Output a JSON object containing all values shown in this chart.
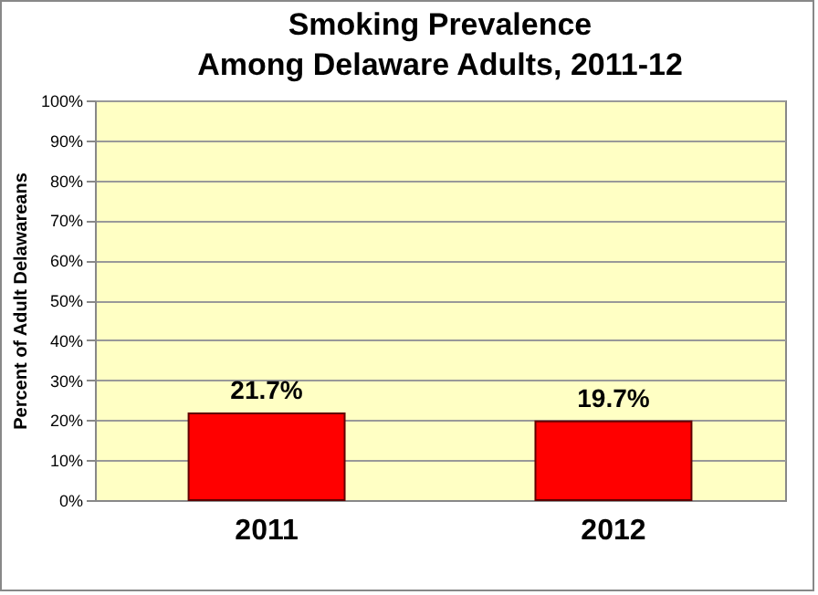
{
  "chart_data": {
    "type": "bar",
    "title": [
      "Smoking Prevalence",
      "Among Delaware Adults, 2011-12"
    ],
    "ylabel": "Percent of Adult Delawareans",
    "categories": [
      "2011",
      "2012"
    ],
    "values": [
      21.7,
      19.7
    ],
    "color": "#ff0000",
    "value_labels": [
      "21.7%",
      "19.7%"
    ],
    "ylim": [
      0,
      100
    ],
    "yticks": [
      {
        "value": 0,
        "label": "0%"
      },
      {
        "value": 10,
        "label": "10%"
      },
      {
        "value": 20,
        "label": "20%"
      },
      {
        "value": 30,
        "label": "30%"
      },
      {
        "value": 40,
        "label": "40%"
      },
      {
        "value": 50,
        "label": "50%"
      },
      {
        "value": 60,
        "label": "60%"
      },
      {
        "value": 70,
        "label": "70%"
      },
      {
        "value": 80,
        "label": "80%"
      },
      {
        "value": 90,
        "label": "90%"
      },
      {
        "value": 100,
        "label": "100%"
      }
    ],
    "grid": true
  }
}
